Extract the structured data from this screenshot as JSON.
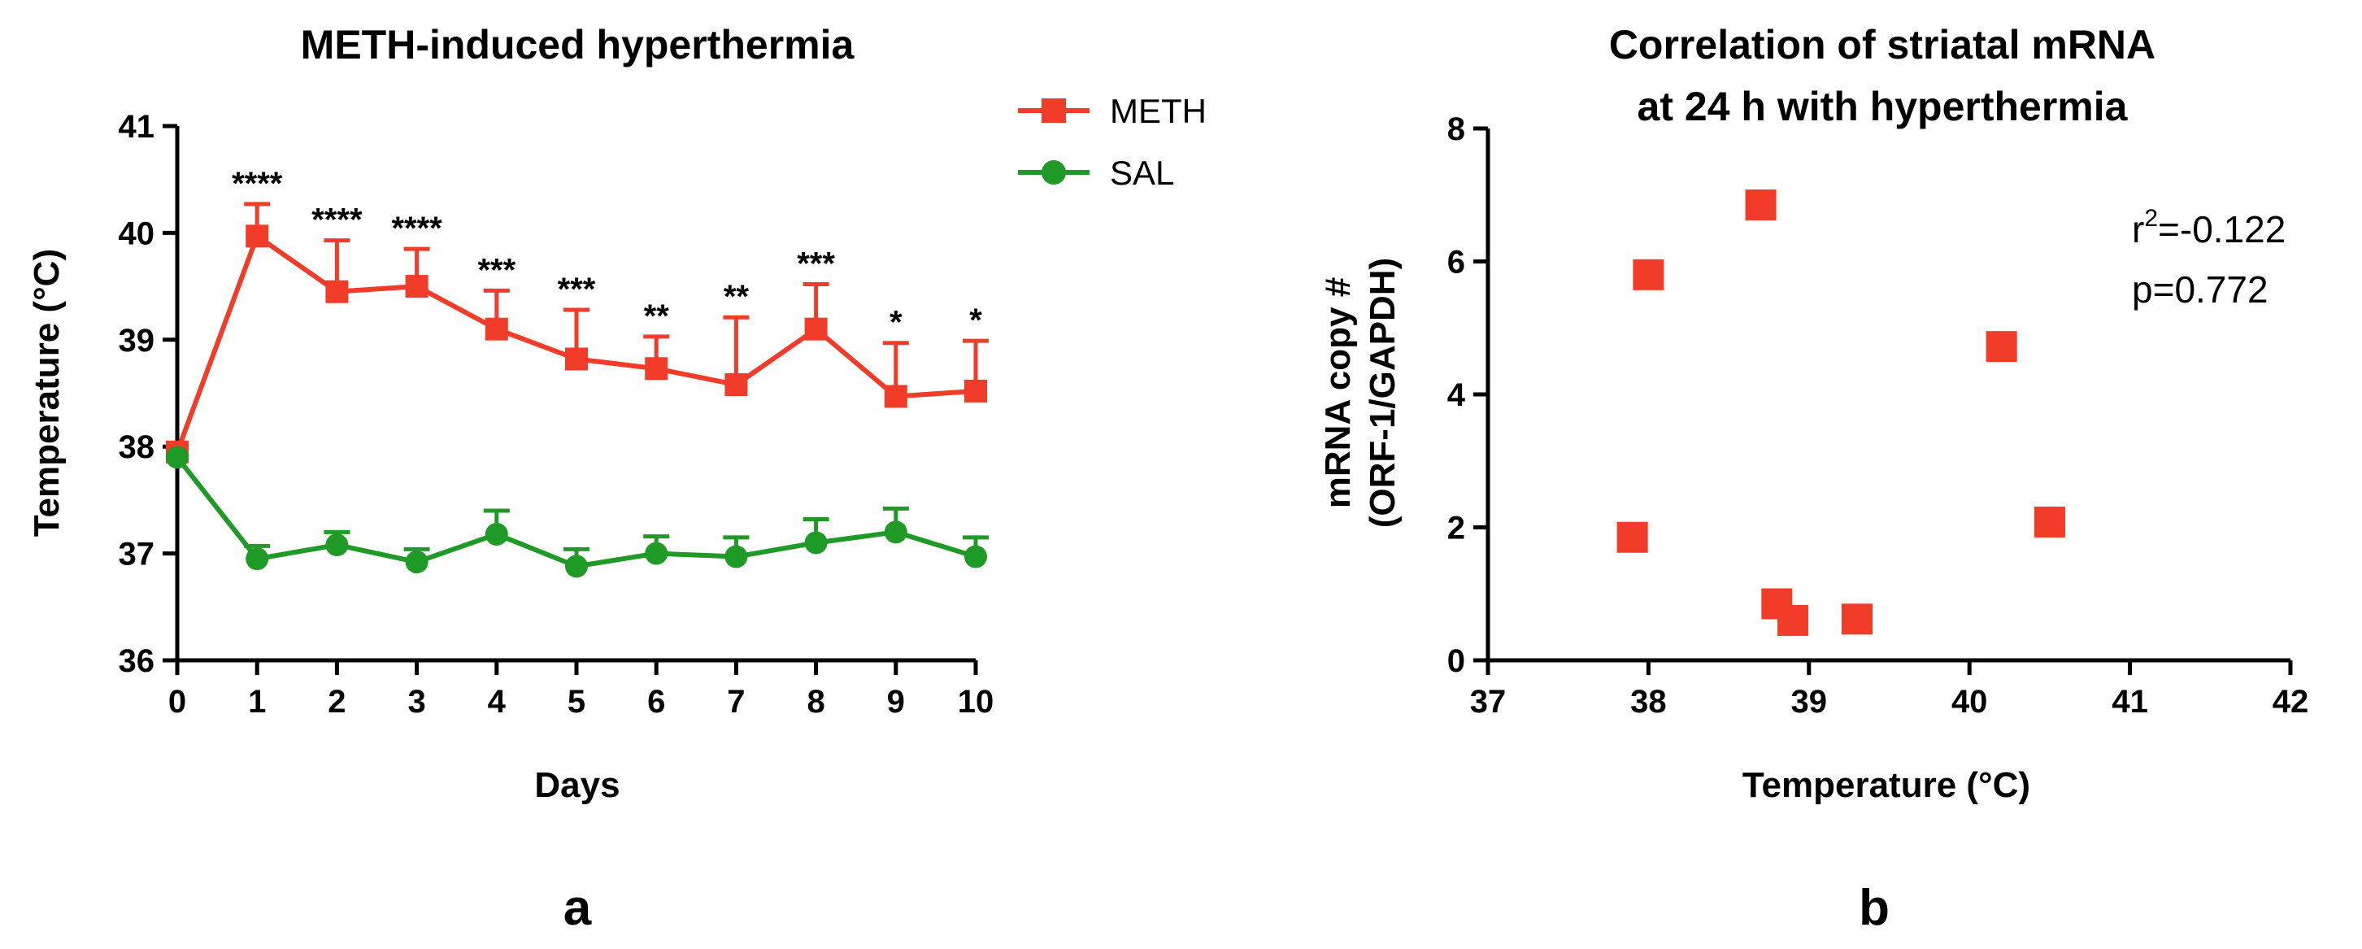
{
  "chart_data": [
    {
      "panel": "a",
      "type": "line",
      "title": "METH-induced hyperthermia",
      "xlabel": "Days",
      "ylabel": "Temperature (°C)",
      "xlim": [
        0,
        10
      ],
      "ylim": [
        36,
        41
      ],
      "xticks": [
        0,
        1,
        2,
        3,
        4,
        5,
        6,
        7,
        8,
        9,
        10
      ],
      "yticks": [
        36,
        37,
        38,
        39,
        40,
        41
      ],
      "grid": false,
      "legend_position": "top-right",
      "series": [
        {
          "name": "METH",
          "color": "#f03c28",
          "marker": "square",
          "x": [
            0,
            1,
            2,
            3,
            4,
            5,
            6,
            7,
            8,
            9,
            10
          ],
          "values": [
            37.95,
            39.97,
            39.45,
            39.5,
            39.1,
            38.82,
            38.73,
            38.58,
            39.1,
            38.47,
            38.52
          ],
          "error_upper": [
            0,
            0.3,
            0.48,
            0.35,
            0.36,
            0.46,
            0.3,
            0.63,
            0.42,
            0.5,
            0.47
          ]
        },
        {
          "name": "SAL",
          "color": "#1f9a26",
          "marker": "circle",
          "x": [
            0,
            1,
            2,
            3,
            4,
            5,
            6,
            7,
            8,
            9,
            10
          ],
          "values": [
            37.9,
            36.95,
            37.08,
            36.92,
            37.18,
            36.88,
            37.0,
            36.97,
            37.1,
            37.2,
            36.97
          ],
          "error_upper": [
            0,
            0.12,
            0.12,
            0.12,
            0.22,
            0.16,
            0.16,
            0.18,
            0.22,
            0.22,
            0.18
          ]
        }
      ],
      "significance": [
        "",
        "****",
        "****",
        "****",
        "***",
        "***",
        "**",
        "**",
        "***",
        "*",
        "*"
      ]
    },
    {
      "panel": "b",
      "type": "scatter",
      "title_lines": [
        "Correlation of striatal mRNA",
        "at 24 h with hyperthermia"
      ],
      "xlabel": "Temperature (°C)",
      "ylabel_lines": [
        "mRNA copy #",
        "(ORF-1/GAPDH)"
      ],
      "xlim": [
        37,
        42
      ],
      "ylim": [
        0,
        8
      ],
      "xticks": [
        37,
        38,
        39,
        40,
        41,
        42
      ],
      "yticks": [
        0,
        2,
        4,
        6,
        8
      ],
      "grid": false,
      "color": "#f03c28",
      "marker": "square",
      "x": [
        37.9,
        38.0,
        38.7,
        38.8,
        38.9,
        39.3,
        40.2,
        40.5
      ],
      "y": [
        1.85,
        5.8,
        6.85,
        0.85,
        0.6,
        0.62,
        4.72,
        2.08
      ],
      "annotation": {
        "r2_prefix": "r",
        "r2_superscript": "2",
        "r2_value": "=-0.122",
        "p_text": "p=0.772"
      }
    }
  ],
  "panel_labels": [
    "a",
    "b"
  ]
}
